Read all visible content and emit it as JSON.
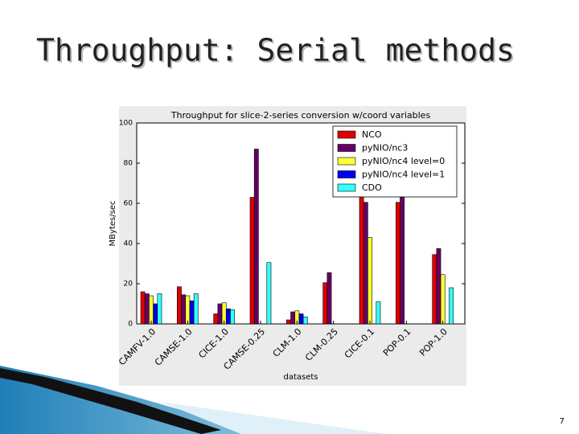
{
  "slide_title": "Throughput: Serial methods",
  "page_number": "7",
  "chart_data": {
    "type": "bar",
    "title": "Throughput for slice-2-series conversion w/coord variables",
    "x_label": "datasets",
    "y_label": "MBytes/sec",
    "categories": [
      "CAMFV-1.0",
      "CAMSE-1.0",
      "CICE-1.0",
      "CAMSE-0.25",
      "CLM-1.0",
      "CLM-0.25",
      "CICE-0.1",
      "POP-0.1",
      "POP-1.0"
    ],
    "series": [
      {
        "name": "NCO",
        "color": "#e00000",
        "values": [
          16,
          18.5,
          5,
          63,
          2,
          20.5,
          65,
          60.5,
          34.5
        ]
      },
      {
        "name": "pyNIO/nc3",
        "color": "#660066",
        "values": [
          15,
          14.5,
          10,
          87,
          6,
          25.5,
          60.5,
          63,
          37.5
        ]
      },
      {
        "name": "pyNIO/nc4 level=0",
        "color": "#ffff33",
        "values": [
          14,
          14,
          10.5,
          null,
          6.5,
          null,
          43,
          null,
          24.5
        ]
      },
      {
        "name": "pyNIO/nc4 level=1",
        "color": "#0000ee",
        "values": [
          10,
          11.5,
          7.5,
          null,
          5,
          null,
          null,
          null,
          null
        ]
      },
      {
        "name": "CDO",
        "color": "#33ffff",
        "values": [
          15,
          15,
          7,
          30.5,
          3.5,
          null,
          11,
          null,
          18
        ]
      }
    ],
    "ylim": [
      0,
      100
    ],
    "yticks": [
      0,
      20,
      40,
      60,
      80,
      100
    ],
    "grid": false,
    "legend": "upper right"
  }
}
